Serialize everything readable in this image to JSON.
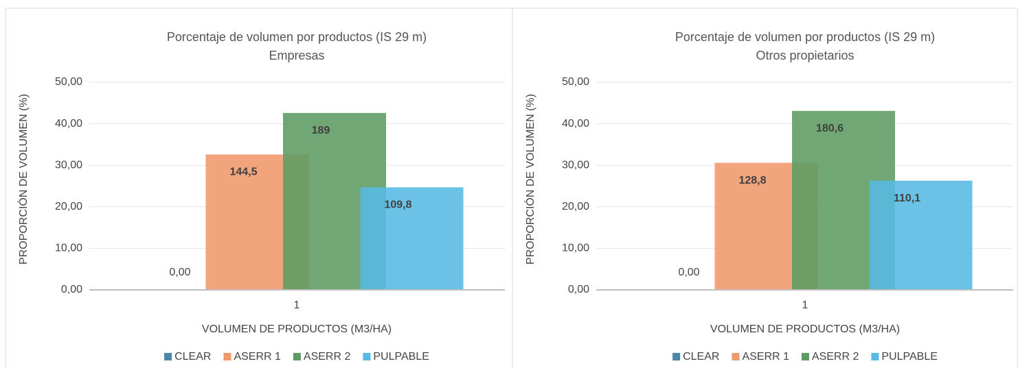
{
  "chart_data": [
    {
      "type": "bar",
      "title": "Porcentaje de volumen por  productos (IS 29 m)",
      "subtitle": "Empresas",
      "x_label": "VOLUMEN DE PRODUCTOS (M3/HA)",
      "y_label": "PROPORCIÓN DE VOLUMEN (%)",
      "categories": [
        "1"
      ],
      "series": [
        {
          "name": "CLEAR",
          "color": "#4e86a6",
          "values": [
            0
          ],
          "data_labels": [
            "0,00"
          ]
        },
        {
          "name": "ASERR 1",
          "color": "#f0996a",
          "values": [
            32.6
          ],
          "data_labels": [
            "144,5"
          ]
        },
        {
          "name": "ASERR 2",
          "color": "#5d9b62",
          "values": [
            42.6
          ],
          "data_labels": [
            "189"
          ]
        },
        {
          "name": "PULPABLE",
          "color": "#56bae2",
          "values": [
            24.7
          ],
          "data_labels": [
            "109,8"
          ]
        }
      ],
      "ylim": [
        0,
        50
      ],
      "yticks": [
        {
          "value": 0,
          "label": "0,00"
        },
        {
          "value": 10,
          "label": "10,00"
        },
        {
          "value": 20,
          "label": "20,00"
        },
        {
          "value": 30,
          "label": "30,00"
        },
        {
          "value": 40,
          "label": "40,00"
        },
        {
          "value": 50,
          "label": "50,00"
        }
      ],
      "grid": true,
      "legend": "bottom"
    },
    {
      "type": "bar",
      "title": "Porcentaje de volumen por  productos (IS 29 m)",
      "subtitle": "Otros propietarios",
      "x_label": "VOLUMEN DE PRODUCTOS (M3/HA)",
      "y_label": "PROPORCIÓN DE VOLUMEN (%)",
      "categories": [
        "1"
      ],
      "series": [
        {
          "name": "CLEAR",
          "color": "#4e86a6",
          "values": [
            0
          ],
          "data_labels": [
            "0,00"
          ]
        },
        {
          "name": "ASERR 1",
          "color": "#f0996a",
          "values": [
            30.6
          ],
          "data_labels": [
            "128,8"
          ]
        },
        {
          "name": "ASERR 2",
          "color": "#5d9b62",
          "values": [
            43.1
          ],
          "data_labels": [
            "180,6"
          ]
        },
        {
          "name": "PULPABLE",
          "color": "#56bae2",
          "values": [
            26.3
          ],
          "data_labels": [
            "110,1"
          ]
        }
      ],
      "ylim": [
        0,
        50
      ],
      "yticks": [
        {
          "value": 0,
          "label": "0,00"
        },
        {
          "value": 10,
          "label": "10,00"
        },
        {
          "value": 20,
          "label": "20,00"
        },
        {
          "value": 30,
          "label": "30,00"
        },
        {
          "value": 40,
          "label": "40,00"
        },
        {
          "value": 50,
          "label": "50,00"
        }
      ],
      "grid": true,
      "legend": "bottom"
    }
  ]
}
